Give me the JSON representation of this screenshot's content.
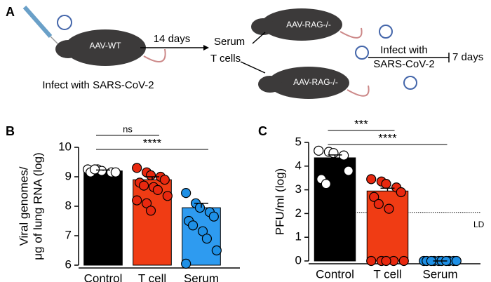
{
  "schematic": {
    "panels": [
      "A",
      "B",
      "C"
    ],
    "donor": "AAV-WT",
    "donor_note": "Infect with SARS-CoV-2",
    "interval": "14 days",
    "transfer": [
      "Serum",
      "T cells"
    ],
    "recipients": [
      "AAV-RAG-/-",
      "AAV-RAG-/-"
    ],
    "challenge": [
      "Infect with",
      "SARS-CoV-2"
    ],
    "endpoint": "7 days"
  },
  "chart_data": [
    {
      "type": "bar",
      "ylabel": [
        "Viral genomes/",
        "μg of lung RNA (log)"
      ],
      "categories": [
        "Control",
        "T cell",
        "Serum"
      ],
      "values": [
        9.2,
        8.9,
        7.95
      ],
      "errors": [
        0.03,
        0.1,
        0.15
      ],
      "colors": [
        "#000000",
        "#f03c14",
        "#2e9bf0"
      ],
      "point_colors": [
        "#ffffff",
        "#e8280f",
        "#1e90e6"
      ],
      "points": [
        [
          9.25,
          9.25,
          9.2,
          9.15,
          9.15,
          9.15,
          9.25
        ],
        [
          9.3,
          9.15,
          9.05,
          9.0,
          8.9,
          8.8,
          8.7,
          8.65,
          8.55,
          8.35,
          8.2,
          8.1,
          7.85
        ],
        [
          8.45,
          8.1,
          7.95,
          7.8,
          7.65,
          7.5,
          7.35,
          7.15,
          6.9,
          6.5,
          6.05
        ]
      ],
      "ylim": [
        6,
        10
      ],
      "yticks": [
        6,
        7,
        8,
        9,
        10
      ],
      "annotations": [
        {
          "text": "ns",
          "from": "Control",
          "to": "T cell"
        },
        {
          "text": "****",
          "from": "Control",
          "to": "Serum"
        }
      ]
    },
    {
      "type": "bar",
      "ylabel": [
        "PFU/ml (log)"
      ],
      "categories": [
        "Control",
        "T cell",
        "Serum"
      ],
      "values": [
        4.35,
        2.95,
        0
      ],
      "errors": [
        0.12,
        0.12,
        0
      ],
      "colors": [
        "#000000",
        "#f03c14",
        "#2e9bf0"
      ],
      "point_colors": [
        "#ffffff",
        "#e8280f",
        "#1e90e6"
      ],
      "points": [
        [
          4.65,
          4.6,
          4.55,
          4.45,
          3.8,
          3.45,
          3.25
        ],
        [
          3.45,
          3.35,
          3.25,
          3.1,
          2.9,
          2.7,
          2.4,
          2.2,
          0,
          0,
          0,
          0,
          0
        ],
        [
          0,
          0,
          0,
          0,
          0,
          0,
          0,
          0,
          0,
          0
        ]
      ],
      "ylim": [
        0,
        5
      ],
      "yticks": [
        0,
        1,
        2,
        3,
        4,
        5
      ],
      "reference_line": {
        "value": 2.05,
        "label": "LD"
      },
      "annotations": [
        {
          "text": "***",
          "from": "Control",
          "to": "T cell"
        },
        {
          "text": "****",
          "from": "Control",
          "to": "Serum"
        }
      ]
    }
  ]
}
